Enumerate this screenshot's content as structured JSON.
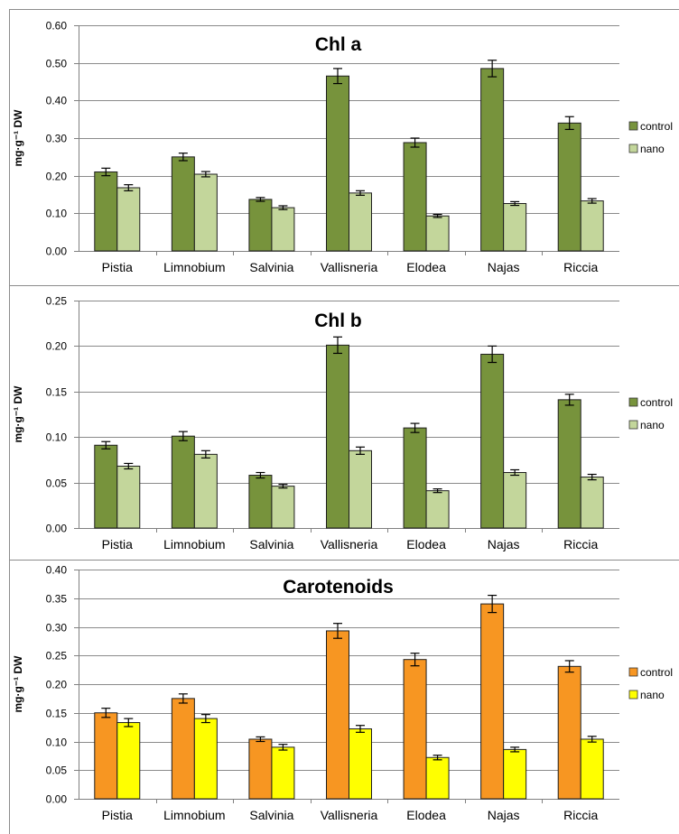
{
  "chart_data": [
    {
      "type": "bar",
      "title": "Chl a",
      "ylabel": "mg·g⁻¹ DW",
      "categories": [
        "Pistia",
        "Limnobium",
        "Salvinia",
        "Vallisneria",
        "Elodea",
        "Najas",
        "Riccia"
      ],
      "ylim": [
        0,
        0.6
      ],
      "yticks": [
        "0.00",
        "0.10",
        "0.20",
        "0.30",
        "0.40",
        "0.50",
        "0.60"
      ],
      "legend_position": "right",
      "series": [
        {
          "name": "control",
          "color": "#77933c",
          "values": [
            0.21,
            0.25,
            0.137,
            0.465,
            0.288,
            0.485,
            0.34
          ],
          "errors": [
            0.01,
            0.01,
            0.005,
            0.02,
            0.012,
            0.022,
            0.017
          ]
        },
        {
          "name": "nano",
          "color": "#c3d69b",
          "values": [
            0.168,
            0.204,
            0.115,
            0.154,
            0.093,
            0.126,
            0.133
          ],
          "errors": [
            0.008,
            0.007,
            0.005,
            0.006,
            0.004,
            0.005,
            0.006
          ]
        }
      ]
    },
    {
      "type": "bar",
      "title": "Chl b",
      "ylabel": "mg·g⁻¹ DW",
      "categories": [
        "Pistia",
        "Limnobium",
        "Salvinia",
        "Vallisneria",
        "Elodea",
        "Najas",
        "Riccia"
      ],
      "ylim": [
        0,
        0.25
      ],
      "yticks": [
        "0.00",
        "0.05",
        "0.10",
        "0.15",
        "0.20",
        "0.25"
      ],
      "legend_position": "right",
      "series": [
        {
          "name": "control",
          "color": "#77933c",
          "values": [
            0.091,
            0.101,
            0.058,
            0.201,
            0.11,
            0.191,
            0.141
          ],
          "errors": [
            0.004,
            0.005,
            0.003,
            0.009,
            0.005,
            0.009,
            0.006
          ]
        },
        {
          "name": "nano",
          "color": "#c3d69b",
          "values": [
            0.068,
            0.081,
            0.046,
            0.085,
            0.041,
            0.061,
            0.056
          ],
          "errors": [
            0.003,
            0.004,
            0.002,
            0.004,
            0.002,
            0.003,
            0.003
          ]
        }
      ]
    },
    {
      "type": "bar",
      "title": "Carotenoids",
      "ylabel": "mg·g⁻¹ DW",
      "categories": [
        "Pistia",
        "Limnobium",
        "Salvinia",
        "Vallisneria",
        "Elodea",
        "Najas",
        "Riccia"
      ],
      "ylim": [
        0,
        0.4
      ],
      "yticks": [
        "0.00",
        "0.05",
        "0.10",
        "0.15",
        "0.20",
        "0.25",
        "0.30",
        "0.35",
        "0.40"
      ],
      "legend_position": "right",
      "series": [
        {
          "name": "control",
          "color": "#f79622",
          "values": [
            0.15,
            0.175,
            0.104,
            0.293,
            0.243,
            0.34,
            0.231
          ],
          "errors": [
            0.008,
            0.008,
            0.004,
            0.013,
            0.011,
            0.015,
            0.01
          ]
        },
        {
          "name": "nano",
          "color": "#ffff00",
          "values": [
            0.133,
            0.14,
            0.09,
            0.122,
            0.072,
            0.086,
            0.104
          ],
          "errors": [
            0.007,
            0.007,
            0.005,
            0.006,
            0.004,
            0.004,
            0.005
          ]
        }
      ]
    }
  ]
}
